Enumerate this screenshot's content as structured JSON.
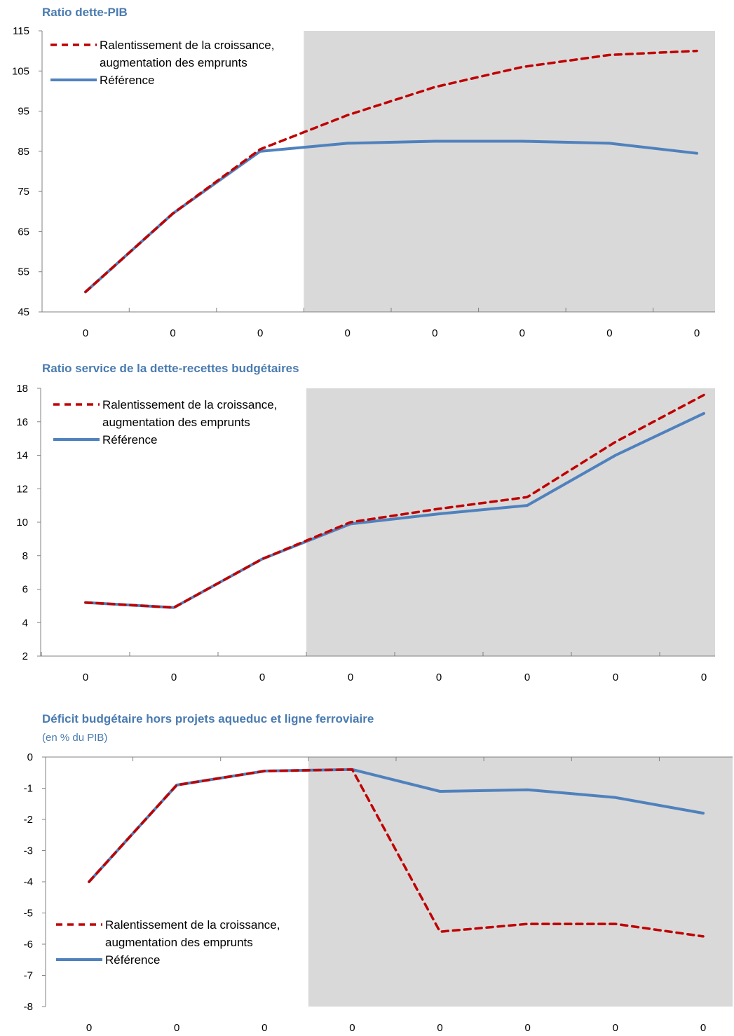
{
  "colors": {
    "title": "#4a7bb0",
    "projection_shade": "#d9d9d9",
    "series_stress": "#c00000",
    "series_baseline": "#4f81bd",
    "axis": "#808080"
  },
  "chart_data": [
    {
      "type": "line",
      "title": "Ratio dette-PIB",
      "subtitle": "",
      "xlabel": "",
      "ylabel": "",
      "categories": [
        "0",
        "0",
        "0",
        "0",
        "0",
        "0",
        "0",
        "0"
      ],
      "ylim": [
        45,
        115
      ],
      "yticks": [
        45,
        55,
        65,
        75,
        85,
        95,
        105,
        115
      ],
      "projection_shading_start_index": 2.5,
      "legend_position": "top-left",
      "grid": false,
      "series": [
        {
          "name": "Ralentissement de la croissance,\naugmentation des emprunts",
          "style": "dashed",
          "values": [
            50,
            69.5,
            85.5,
            94,
            101,
            106,
            109,
            110
          ]
        },
        {
          "name": "Référence",
          "style": "solid",
          "values": [
            50,
            69.5,
            85,
            87,
            87.5,
            87.5,
            87,
            84.5
          ]
        }
      ]
    },
    {
      "type": "line",
      "title": "Ratio service de la dette-recettes budgétaires",
      "subtitle": "",
      "xlabel": "",
      "ylabel": "",
      "categories": [
        "0",
        "0",
        "0",
        "0",
        "0",
        "0",
        "0",
        "0"
      ],
      "ylim": [
        2,
        18
      ],
      "yticks": [
        2,
        4,
        6,
        8,
        10,
        12,
        14,
        16,
        18
      ],
      "projection_shading_start_index": 2.5,
      "legend_position": "top-left",
      "grid": false,
      "series": [
        {
          "name": "Ralentissement de la croissance,\naugmentation des emprunts",
          "style": "dashed",
          "values": [
            5.2,
            4.9,
            7.8,
            10,
            10.8,
            11.5,
            14.8,
            17.6
          ]
        },
        {
          "name": "Référence",
          "style": "solid",
          "values": [
            5.2,
            4.9,
            7.8,
            9.9,
            10.5,
            11,
            14,
            16.5
          ]
        }
      ]
    },
    {
      "type": "line",
      "title": "Déficit budgétaire hors projets aqueduc et ligne ferroviaire",
      "subtitle": "(en % du PIB)",
      "xlabel": "",
      "ylabel": "",
      "categories": [
        "0",
        "0",
        "0",
        "0",
        "0",
        "0",
        "0",
        "0"
      ],
      "ylim": [
        -8,
        0
      ],
      "yticks": [
        -8,
        -7,
        -6,
        -5,
        -4,
        -3,
        -2,
        -1,
        0
      ],
      "projection_shading_start_index": 2.5,
      "legend_position": "bottom-left",
      "grid": false,
      "series": [
        {
          "name": "Ralentissement de la croissance,\naugmentation des emprunts",
          "style": "dashed",
          "values": [
            -4,
            -0.9,
            -0.45,
            -0.4,
            -5.6,
            -5.35,
            -5.35,
            -5.75
          ]
        },
        {
          "name": "Référence",
          "style": "solid",
          "values": [
            -4,
            -0.9,
            -0.45,
            -0.4,
            -1.1,
            -1.05,
            -1.3,
            -1.8
          ]
        }
      ]
    }
  ]
}
